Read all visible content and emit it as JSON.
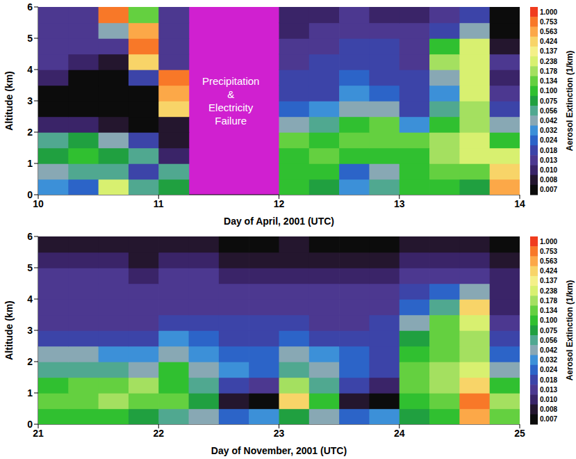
{
  "chart_data": [
    {
      "type": "heatmap",
      "x_label": "Day of April, 2001 (UTC)",
      "y_label": "Altitude (km)",
      "xlim": [
        10,
        14
      ],
      "xticks": [
        10,
        11,
        12,
        13,
        14
      ],
      "ylim": [
        0,
        6
      ],
      "yticks": [
        0,
        1,
        2,
        3,
        4,
        5,
        6
      ],
      "x": [
        10.125,
        10.375,
        10.625,
        10.875,
        11.125,
        11.375,
        11.625,
        11.875,
        12.125,
        12.375,
        12.625,
        12.875,
        13.125,
        13.375,
        13.625,
        13.875
      ],
      "y": [
        0.25,
        0.75,
        1.25,
        1.75,
        2.25,
        2.75,
        3.25,
        3.75,
        4.25,
        4.75,
        5.25,
        5.75
      ],
      "values": [
        [
          0.032,
          0.024,
          0.238,
          0.056,
          0.075,
          null,
          null,
          null,
          0.1,
          0.075,
          0.032,
          0.056,
          0.1,
          0.1,
          0.075,
          0.563
        ],
        [
          0.042,
          0.056,
          0.056,
          0.018,
          0.056,
          null,
          null,
          null,
          0.1,
          0.1,
          0.024,
          0.042,
          0.1,
          0.134,
          0.134,
          0.424
        ],
        [
          0.075,
          0.1,
          0.075,
          0.056,
          0.01,
          null,
          null,
          null,
          0.1,
          0.134,
          0.1,
          0.1,
          0.1,
          0.178,
          0.238,
          0.238
        ],
        [
          0.056,
          0.075,
          0.042,
          0.018,
          0.008,
          null,
          null,
          null,
          0.134,
          0.1,
          0.134,
          0.134,
          0.134,
          0.178,
          0.238,
          0.1
        ],
        [
          0.01,
          0.01,
          0.008,
          0.007,
          0.008,
          null,
          null,
          null,
          0.042,
          0.056,
          0.1,
          0.134,
          0.032,
          0.1,
          0.178,
          0.042
        ],
        [
          0.007,
          0.007,
          0.007,
          0.007,
          0.424,
          null,
          null,
          null,
          0.024,
          0.032,
          0.042,
          0.042,
          0.018,
          0.056,
          0.178,
          0.018
        ],
        [
          0.007,
          0.007,
          0.007,
          0.007,
          0.563,
          null,
          null,
          null,
          0.018,
          0.018,
          0.032,
          0.024,
          0.018,
          0.032,
          0.238,
          0.013
        ],
        [
          0.01,
          0.007,
          0.007,
          0.018,
          0.753,
          null,
          null,
          null,
          0.018,
          0.018,
          0.024,
          0.018,
          0.018,
          0.042,
          0.238,
          0.01
        ],
        [
          0.013,
          0.01,
          0.008,
          0.424,
          0.013,
          null,
          null,
          null,
          0.013,
          0.018,
          0.018,
          0.018,
          0.013,
          0.178,
          0.238,
          0.013
        ],
        [
          0.013,
          0.013,
          0.013,
          0.753,
          0.013,
          null,
          null,
          null,
          0.013,
          0.013,
          0.018,
          0.018,
          0.013,
          0.1,
          0.238,
          0.008
        ],
        [
          0.013,
          0.013,
          0.042,
          0.563,
          0.013,
          null,
          null,
          null,
          0.01,
          0.013,
          0.013,
          0.013,
          0.013,
          0.018,
          0.042,
          0.007
        ],
        [
          0.013,
          0.013,
          0.753,
          0.134,
          0.013,
          null,
          null,
          null,
          0.01,
          0.01,
          0.013,
          0.01,
          0.01,
          0.013,
          0.018,
          0.007
        ]
      ],
      "annotations": [
        {
          "text": "Precipitation & Electricity Failure",
          "x_range": [
            11.15,
            12.05
          ],
          "color": "#d020d0"
        }
      ],
      "colorbar": {
        "label": "Aerosol Extinction (1/km)",
        "ticks": [
          {
            "value": 1,
            "label": "1.000"
          },
          0.753,
          0.563,
          0.424,
          0.137,
          0.238,
          0.178,
          0.134,
          {
            "value": 0.1,
            "label": "0.100"
          },
          0.075,
          0.056,
          0.042,
          0.032,
          0.024,
          0.018,
          0.013,
          {
            "value": 0.01,
            "label": "0.010"
          },
          0.008,
          0.007
        ],
        "colors": [
          "#f03c1e",
          "#f87828",
          "#fca848",
          "#f8d468",
          "#f4f088",
          "#d8f070",
          "#a4e060",
          "#64d040",
          "#30c030",
          "#20a040",
          "#50a890",
          "#88a8b4",
          "#3c90d8",
          "#2c64c8",
          "#3c44a8",
          "#4c3890",
          "#3a2468",
          "#24162e",
          "#0c0c0c"
        ]
      }
    },
    {
      "type": "heatmap",
      "x_label": "Day of November, 2001 (UTC)",
      "y_label": "Altitude (km)",
      "xlim": [
        21,
        25
      ],
      "xticks": [
        21,
        22,
        23,
        24,
        25
      ],
      "ylim": [
        0,
        6
      ],
      "yticks": [
        0,
        1,
        2,
        3,
        4,
        5,
        6
      ],
      "x": [
        21.125,
        21.375,
        21.625,
        21.875,
        22.125,
        22.375,
        22.625,
        22.875,
        23.125,
        23.375,
        23.625,
        23.875,
        24.125,
        24.375,
        24.625,
        24.875
      ],
      "y": [
        0.25,
        0.75,
        1.25,
        1.75,
        2.25,
        2.75,
        3.25,
        3.75,
        4.25,
        4.75,
        5.25,
        5.75
      ],
      "values": [
        [
          0.1,
          0.1,
          0.1,
          0.075,
          0.056,
          0.042,
          0.024,
          0.032,
          0.075,
          0.042,
          0.024,
          0.032,
          0.075,
          0.1,
          0.563,
          0.134
        ],
        [
          0.134,
          0.134,
          0.178,
          0.134,
          0.134,
          0.075,
          0.008,
          0.007,
          0.424,
          0.1,
          0.008,
          0.007,
          0.1,
          0.134,
          0.753,
          0.178
        ],
        [
          0.1,
          0.134,
          0.134,
          0.178,
          0.1,
          0.056,
          0.018,
          0.013,
          0.178,
          0.056,
          0.018,
          0.01,
          0.134,
          0.178,
          0.424,
          0.1
        ],
        [
          0.056,
          0.056,
          0.056,
          0.042,
          0.1,
          0.042,
          0.032,
          0.024,
          0.056,
          0.042,
          0.024,
          0.018,
          0.134,
          0.178,
          0.238,
          0.042
        ],
        [
          0.042,
          0.042,
          0.032,
          0.032,
          0.042,
          0.032,
          0.024,
          0.024,
          0.042,
          0.032,
          0.024,
          0.018,
          0.1,
          0.134,
          0.178,
          0.024
        ],
        [
          0.018,
          0.018,
          0.018,
          0.018,
          0.032,
          0.024,
          0.018,
          0.018,
          0.024,
          0.018,
          0.018,
          0.018,
          0.075,
          0.134,
          0.178,
          0.018
        ],
        [
          0.013,
          0.013,
          0.013,
          0.013,
          0.018,
          0.018,
          0.018,
          0.018,
          0.018,
          0.013,
          0.013,
          0.018,
          0.042,
          0.134,
          0.238,
          0.013
        ],
        [
          0.013,
          0.013,
          0.013,
          0.013,
          0.013,
          0.013,
          0.013,
          0.013,
          0.013,
          0.013,
          0.013,
          0.013,
          0.024,
          0.056,
          0.424,
          0.01
        ],
        [
          0.013,
          0.013,
          0.013,
          0.013,
          0.013,
          0.013,
          0.013,
          0.013,
          0.013,
          0.013,
          0.013,
          0.013,
          0.018,
          0.024,
          0.042,
          0.01
        ],
        [
          0.013,
          0.013,
          0.013,
          0.01,
          0.013,
          0.013,
          0.01,
          0.01,
          0.01,
          0.01,
          0.01,
          0.01,
          0.013,
          0.013,
          0.013,
          0.01
        ],
        [
          0.01,
          0.01,
          0.01,
          0.008,
          0.01,
          0.01,
          0.008,
          0.008,
          0.008,
          0.008,
          0.008,
          0.008,
          0.01,
          0.01,
          0.01,
          0.008
        ],
        [
          0.008,
          0.008,
          0.008,
          0.008,
          0.008,
          0.008,
          0.007,
          0.007,
          0.008,
          0.007,
          0.007,
          0.007,
          0.008,
          0.008,
          0.008,
          0.007
        ]
      ],
      "colorbar": {
        "label": "Aerosol Extinction (1/km)",
        "ticks": [
          {
            "value": 1,
            "label": "1.000"
          },
          0.753,
          0.563,
          0.424,
          0.137,
          0.238,
          0.178,
          0.134,
          {
            "value": 0.1,
            "label": "0.100"
          },
          0.075,
          0.056,
          0.042,
          0.032,
          0.024,
          0.018,
          0.013,
          {
            "value": 0.01,
            "label": "0.010"
          },
          0.008,
          0.007
        ],
        "colors": [
          "#f03c1e",
          "#f87828",
          "#fca848",
          "#f8d468",
          "#f4f088",
          "#d8f070",
          "#a4e060",
          "#64d040",
          "#30c030",
          "#20a040",
          "#50a890",
          "#88a8b4",
          "#3c90d8",
          "#2c64c8",
          "#3c44a8",
          "#4c3890",
          "#3a2468",
          "#24162e",
          "#0c0c0c"
        ]
      }
    }
  ]
}
